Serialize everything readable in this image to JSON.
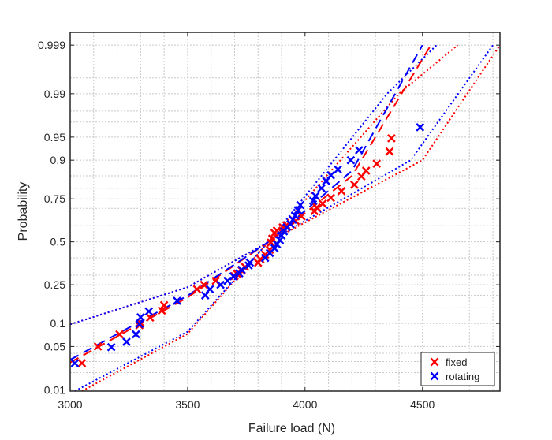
{
  "chart_data": {
    "type": "scatter",
    "title": "",
    "xlabel": "Failure load (N)",
    "ylabel": "Probability",
    "xlim": [
      3000,
      4830
    ],
    "ylim": [
      0.0095,
      0.9995
    ],
    "y_scale": "normal-probability",
    "grid": true,
    "legend_position": "bottom-right",
    "x_ticks": [
      3000,
      3500,
      4000,
      4500
    ],
    "y_ticks": [
      0.01,
      0.05,
      0.1,
      0.25,
      0.5,
      0.75,
      0.9,
      0.95,
      0.99,
      0.999
    ],
    "y_tick_labels": [
      "0.01",
      "0.05",
      "0.1",
      "0.25",
      "0.5",
      "0.75",
      "0.9",
      "0.95",
      "0.99",
      "0.999"
    ],
    "y_grid_extra": [
      0.02,
      0.03,
      0.04,
      0.15,
      0.2,
      0.3,
      0.4,
      0.6,
      0.7,
      0.8,
      0.85,
      0.97,
      0.98,
      0.995
    ],
    "series": [
      {
        "name": "fixed",
        "color": "#ff0000",
        "marker": "x",
        "points": [
          [
            3050,
            0.0283
          ],
          [
            3118,
            0.05
          ],
          [
            3210,
            0.073
          ],
          [
            3295,
            0.095
          ],
          [
            3300,
            0.101
          ],
          [
            3340,
            0.117
          ],
          [
            3390,
            0.14
          ],
          [
            3400,
            0.16
          ],
          [
            3540,
            0.228
          ],
          [
            3570,
            0.25
          ],
          [
            3620,
            0.27
          ],
          [
            3700,
            0.295
          ],
          [
            3710,
            0.308
          ],
          [
            3730,
            0.326
          ],
          [
            3745,
            0.346
          ],
          [
            3800,
            0.371
          ],
          [
            3810,
            0.392
          ],
          [
            3830,
            0.42
          ],
          [
            3850,
            0.45
          ],
          [
            3855,
            0.495
          ],
          [
            3860,
            0.52
          ],
          [
            3870,
            0.555
          ],
          [
            3880,
            0.57
          ],
          [
            3905,
            0.59
          ],
          [
            3920,
            0.603
          ],
          [
            3960,
            0.628
          ],
          [
            3985,
            0.655
          ],
          [
            4040,
            0.685
          ],
          [
            4050,
            0.705
          ],
          [
            4075,
            0.725
          ],
          [
            4110,
            0.755
          ],
          [
            4155,
            0.787
          ],
          [
            4210,
            0.815
          ],
          [
            4240,
            0.848
          ],
          [
            4260,
            0.868
          ],
          [
            4305,
            0.89
          ],
          [
            4360,
            0.922
          ],
          [
            4368,
            0.948
          ]
        ]
      },
      {
        "name": "rotating",
        "color": "#0000ff",
        "marker": "x",
        "points": [
          [
            3020,
            0.0283
          ],
          [
            3175,
            0.049
          ],
          [
            3240,
            0.058
          ],
          [
            3280,
            0.073
          ],
          [
            3295,
            0.098
          ],
          [
            3300,
            0.118
          ],
          [
            3335,
            0.137
          ],
          [
            3455,
            0.177
          ],
          [
            3575,
            0.2
          ],
          [
            3595,
            0.228
          ],
          [
            3640,
            0.25
          ],
          [
            3670,
            0.27
          ],
          [
            3695,
            0.294
          ],
          [
            3720,
            0.31
          ],
          [
            3730,
            0.33
          ],
          [
            3760,
            0.355
          ],
          [
            3765,
            0.372
          ],
          [
            3830,
            0.4
          ],
          [
            3850,
            0.43
          ],
          [
            3870,
            0.46
          ],
          [
            3880,
            0.485
          ],
          [
            3893,
            0.51
          ],
          [
            3900,
            0.54
          ],
          [
            3910,
            0.565
          ],
          [
            3922,
            0.59
          ],
          [
            3938,
            0.61
          ],
          [
            3948,
            0.635
          ],
          [
            3958,
            0.66
          ],
          [
            3970,
            0.69
          ],
          [
            3980,
            0.718
          ],
          [
            4035,
            0.74
          ],
          [
            4045,
            0.764
          ],
          [
            4070,
            0.8
          ],
          [
            4090,
            0.83
          ],
          [
            4110,
            0.852
          ],
          [
            4140,
            0.872
          ],
          [
            4195,
            0.9
          ],
          [
            4230,
            0.925
          ],
          [
            4490,
            0.964
          ]
        ]
      }
    ],
    "fit_lines": [
      {
        "series": "fixed",
        "color": "#ff0000",
        "style": "dashed",
        "points": [
          [
            3000,
            0.029
          ],
          [
            3500,
            0.191
          ],
          [
            3845,
            0.5
          ],
          [
            4200,
            0.85
          ],
          [
            4536,
            0.999
          ]
        ]
      },
      {
        "series": "rotating",
        "color": "#0000ff",
        "style": "dashed",
        "points": [
          [
            3000,
            0.032
          ],
          [
            3500,
            0.199
          ],
          [
            3845,
            0.5
          ],
          [
            4200,
            0.868
          ],
          [
            4500,
            0.999
          ]
        ]
      }
    ],
    "confidence_bounds": [
      {
        "series": "fixed",
        "color": "#ff0000",
        "style": "dotted",
        "upper": [
          [
            3000,
            0.0975
          ],
          [
            3500,
            0.238
          ],
          [
            3845,
            0.5
          ],
          [
            4400,
            0.99
          ],
          [
            4650,
            0.999
          ]
        ],
        "lower": [
          [
            3050,
            0.0095
          ],
          [
            3500,
            0.074
          ],
          [
            3845,
            0.5
          ],
          [
            4500,
            0.9
          ],
          [
            4830,
            0.999
          ]
        ]
      },
      {
        "series": "rotating",
        "color": "#0000ff",
        "style": "dotted",
        "upper": [
          [
            3000,
            0.0975
          ],
          [
            3500,
            0.238
          ],
          [
            3845,
            0.5
          ],
          [
            4350,
            0.99
          ],
          [
            4560,
            0.999
          ]
        ],
        "lower": [
          [
            3020,
            0.0095
          ],
          [
            3500,
            0.079
          ],
          [
            3845,
            0.5
          ],
          [
            4450,
            0.9
          ],
          [
            4800,
            0.999
          ]
        ]
      }
    ]
  }
}
